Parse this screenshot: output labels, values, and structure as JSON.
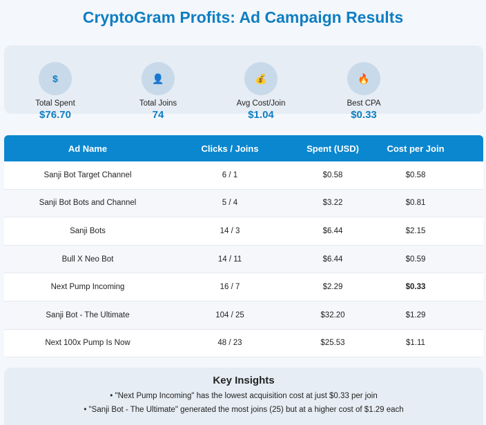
{
  "header": {
    "title": "CryptoGram Profits: Ad Campaign Results"
  },
  "stats": [
    {
      "icon": "$",
      "label": "Total Spent",
      "value": "$76.70"
    },
    {
      "icon": "👤",
      "label": "Total Joins",
      "value": "74"
    },
    {
      "icon": "💰",
      "label": "Avg Cost/Join",
      "value": "$1.04"
    },
    {
      "icon": "🔥",
      "label": "Best CPA",
      "value": "$0.33"
    }
  ],
  "table": {
    "columns": [
      "Ad Name",
      "Clicks / Joins",
      "Spent (USD)",
      "Cost per Join"
    ],
    "rows": [
      [
        "Sanji Bot Target Channel",
        "6 / 1",
        "$0.58",
        "$0.58"
      ],
      [
        "Sanji Bot Bots and Channel",
        "5 / 4",
        "$3.22",
        "$0.81"
      ],
      [
        "Sanji Bots",
        "14 / 3",
        "$6.44",
        "$2.15"
      ],
      [
        "Bull X Neo Bot",
        "14 / 11",
        "$6.44",
        "$0.59"
      ],
      [
        "Next Pump Incoming",
        "16 / 7",
        "$2.29",
        "$0.33"
      ],
      [
        "Sanji Bot - The Ultimate",
        "104 / 25",
        "$32.20",
        "$1.29"
      ],
      [
        "Next 100x Pump Is Now",
        "48 / 23",
        "$25.53",
        "$1.11"
      ]
    ]
  },
  "insights": {
    "title": "Key Insights",
    "items": [
      "\"Next Pump Incoming\" has the lowest acquisition cost at just $0.33 per join",
      "\"Sanji Bot - The Ultimate\" generated the most joins (25) but at a higher cost of $1.29 each"
    ]
  }
}
